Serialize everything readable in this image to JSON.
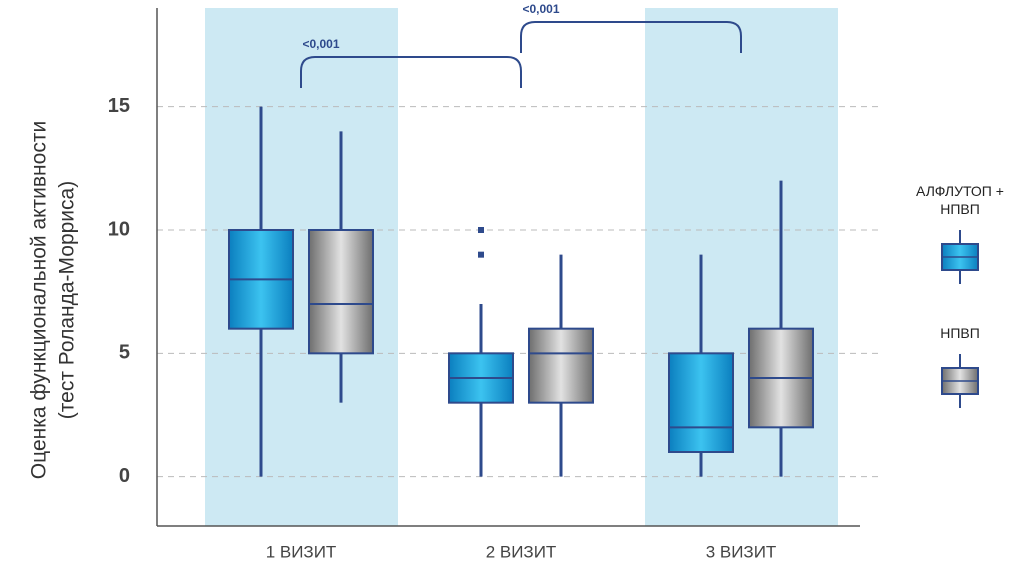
{
  "chart_data": {
    "type": "box",
    "ylabel": [
      "Оценка функциональной активности",
      "(тест Роланда-Морриса)"
    ],
    "categories": [
      "1 ВИЗИТ",
      "2 ВИЗИТ",
      "3 ВИЗИТ"
    ],
    "series": [
      {
        "name": "АЛФЛУТОП + НПВП",
        "color": "#1ba3dd",
        "values": [
          {
            "min": 0,
            "q1": 6,
            "median": 8,
            "q3": 10,
            "max": 15,
            "outliers": []
          },
          {
            "min": 0,
            "q1": 3,
            "median": 4,
            "q3": 5,
            "max": 7,
            "outliers": [
              9,
              10
            ]
          },
          {
            "min": 0,
            "q1": 1,
            "median": 2,
            "q3": 5,
            "max": 9,
            "outliers": []
          }
        ]
      },
      {
        "name": "НПВП",
        "color": "#9a9a9a",
        "values": [
          {
            "min": 3,
            "q1": 5,
            "median": 7,
            "q3": 10,
            "max": 14,
            "outliers": []
          },
          {
            "min": 0,
            "q1": 3,
            "median": 5,
            "q3": 6,
            "max": 9,
            "outliers": []
          },
          {
            "min": 0,
            "q1": 2,
            "median": 4,
            "q3": 6,
            "max": 12,
            "outliers": []
          }
        ]
      }
    ],
    "annotations": [
      "<0,001",
      "<0,001"
    ],
    "ylim": [
      -2,
      19
    ],
    "yticks": [
      0,
      5,
      10,
      15
    ],
    "grid": true
  }
}
